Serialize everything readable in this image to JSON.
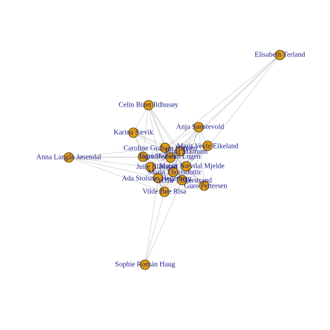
{
  "colors": {
    "node_fill": "#e5a00d",
    "node_stroke": "#3a2a00",
    "label": "#1a1a8c",
    "edge": "#8c8c8c"
  },
  "nodes": [
    {
      "id": "elisabeth",
      "label": "Elisabeth Terland"
    },
    {
      "id": "celin",
      "label": "Celin Bizet Ildhusøy"
    },
    {
      "id": "anja",
      "label": "Anja Sønstevold"
    },
    {
      "id": "karina",
      "label": "Karina Sævik"
    },
    {
      "id": "marit",
      "label": "Marit Vevle Eikeland"
    },
    {
      "id": "caroline",
      "label": "Caroline Graham Hansen"
    },
    {
      "id": "frida",
      "label": "Frida Maanum"
    },
    {
      "id": "anna",
      "label": "Anna Langås Jøsendal"
    },
    {
      "id": "guro_r",
      "label": "Guro Reiten"
    },
    {
      "id": "ingrid",
      "label": "Ingrid Syrstad Engen"
    },
    {
      "id": "julie",
      "label": "Julie Blakstad"
    },
    {
      "id": "maren",
      "label": "Maren Nævdal Mjelde"
    },
    {
      "id": "maria",
      "label": "Maria Thorisdottir"
    },
    {
      "id": "ada",
      "label": "Ada Stolsmo Hegerberg"
    },
    {
      "id": "cecilie",
      "label": "Cecilie Fiskerstrand"
    },
    {
      "id": "guro_p",
      "label": "Guro Pettersen"
    },
    {
      "id": "vilde",
      "label": "Vilde Bøe Risa"
    },
    {
      "id": "sophie",
      "label": "Sophie Román Haug"
    }
  ],
  "edges": [
    [
      "caroline",
      "frida"
    ],
    [
      "caroline",
      "guro_r"
    ],
    [
      "caroline",
      "ingrid"
    ],
    [
      "caroline",
      "julie"
    ],
    [
      "caroline",
      "maren"
    ],
    [
      "caroline",
      "maria"
    ],
    [
      "caroline",
      "ada"
    ],
    [
      "caroline",
      "vilde"
    ],
    [
      "caroline",
      "celin"
    ],
    [
      "caroline",
      "karina"
    ],
    [
      "caroline",
      "anja"
    ],
    [
      "caroline",
      "marit"
    ],
    [
      "caroline",
      "anna"
    ],
    [
      "caroline",
      "cecilie"
    ],
    [
      "caroline",
      "guro_p"
    ],
    [
      "frida",
      "guro_r"
    ],
    [
      "frida",
      "ingrid"
    ],
    [
      "frida",
      "maren"
    ],
    [
      "frida",
      "maria"
    ],
    [
      "frida",
      "vilde"
    ],
    [
      "frida",
      "celin"
    ],
    [
      "frida",
      "anja"
    ],
    [
      "frida",
      "marit"
    ],
    [
      "frida",
      "karina"
    ],
    [
      "frida",
      "ada"
    ],
    [
      "frida",
      "cecilie"
    ],
    [
      "guro_r",
      "ingrid"
    ],
    [
      "guro_r",
      "julie"
    ],
    [
      "guro_r",
      "maren"
    ],
    [
      "guro_r",
      "ada"
    ],
    [
      "guro_r",
      "vilde"
    ],
    [
      "guro_r",
      "anna"
    ],
    [
      "guro_r",
      "celin"
    ],
    [
      "guro_r",
      "karina"
    ],
    [
      "guro_r",
      "maria"
    ],
    [
      "ingrid",
      "maren"
    ],
    [
      "ingrid",
      "maria"
    ],
    [
      "ingrid",
      "ada"
    ],
    [
      "ingrid",
      "vilde"
    ],
    [
      "ingrid",
      "celin"
    ],
    [
      "ingrid",
      "anna"
    ],
    [
      "ingrid",
      "karina"
    ],
    [
      "ingrid",
      "anja"
    ],
    [
      "ingrid",
      "marit"
    ],
    [
      "ingrid",
      "cecilie"
    ],
    [
      "ingrid",
      "guro_p"
    ],
    [
      "julie",
      "ada"
    ],
    [
      "julie",
      "vilde"
    ],
    [
      "julie",
      "maria"
    ],
    [
      "julie",
      "anna"
    ],
    [
      "julie",
      "cecilie"
    ],
    [
      "maren",
      "maria"
    ],
    [
      "maren",
      "ada"
    ],
    [
      "maren",
      "vilde"
    ],
    [
      "maren",
      "anja"
    ],
    [
      "maren",
      "marit"
    ],
    [
      "maren",
      "guro_p"
    ],
    [
      "maren",
      "cecilie"
    ],
    [
      "maria",
      "ada"
    ],
    [
      "maria",
      "vilde"
    ],
    [
      "maria",
      "cecilie"
    ],
    [
      "maria",
      "guro_p"
    ],
    [
      "maria",
      "marit"
    ],
    [
      "ada",
      "vilde"
    ],
    [
      "ada",
      "cecilie"
    ],
    [
      "ada",
      "anna"
    ],
    [
      "vilde",
      "cecilie"
    ],
    [
      "vilde",
      "guro_p"
    ],
    [
      "vilde",
      "sophie"
    ],
    [
      "celin",
      "karina"
    ],
    [
      "celin",
      "maren"
    ],
    [
      "celin",
      "vilde"
    ],
    [
      "anja",
      "marit"
    ],
    [
      "anja",
      "cecilie"
    ],
    [
      "anja",
      "guro_p"
    ],
    [
      "elisabeth",
      "caroline"
    ],
    [
      "elisabeth",
      "ingrid"
    ],
    [
      "elisabeth",
      "cecilie"
    ],
    [
      "elisabeth",
      "frida"
    ],
    [
      "sophie",
      "cecilie"
    ],
    [
      "sophie",
      "ada"
    ],
    [
      "anna",
      "vilde"
    ],
    [
      "karina",
      "vilde"
    ]
  ]
}
